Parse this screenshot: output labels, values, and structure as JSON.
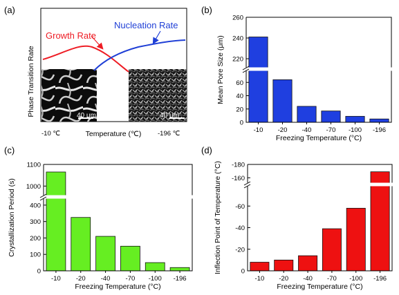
{
  "panels": {
    "a": {
      "label": "(a)",
      "ylabel": "Phase Transition Rate",
      "xlabel": "Temperature (℃)",
      "xleft": "-10 ℃",
      "xright": "-196 ℃",
      "growth_label": "Growth Rate",
      "nucleation_label": "Nucleation Rate",
      "scale_left": "40 μm",
      "scale_right": "40 μm",
      "colors": {
        "growth": "#ee1c24",
        "nucleation": "#1f3fd6"
      }
    },
    "b": {
      "label": "(b)"
    },
    "c": {
      "label": "(c)"
    },
    "d": {
      "label": "(d)"
    }
  },
  "chart_data": [
    {
      "panel": "b",
      "type": "bar",
      "categories": [
        "-10",
        "-20",
        "-40",
        "-70",
        "-100",
        "-196"
      ],
      "values": [
        241,
        64,
        24,
        17,
        9,
        5
      ],
      "xlabel": "Freezing Temperature (°C)",
      "ylabel": "Mean Pore Size (μm)",
      "axis_break": true,
      "ylim_lower": [
        0,
        80
      ],
      "ylim_upper": [
        210,
        260
      ],
      "yticks_lower": [
        0,
        20,
        40,
        60
      ],
      "yticks_upper": [
        220,
        240,
        260
      ],
      "color": "#1f3fe0",
      "grid": false
    },
    {
      "panel": "c",
      "type": "bar",
      "categories": [
        "-10",
        "-20",
        "-40",
        "-70",
        "-100",
        "-196"
      ],
      "values": [
        1065,
        325,
        210,
        150,
        50,
        20
      ],
      "xlabel": "Freezing Temperature (°C)",
      "ylabel": "Crystallization Period (s)",
      "axis_break": true,
      "ylim_lower": [
        0,
        450
      ],
      "ylim_upper": [
        950,
        1100
      ],
      "yticks_lower": [
        0,
        100,
        200,
        300,
        400
      ],
      "yticks_upper": [
        1000,
        1100
      ],
      "color": "#66ee22",
      "grid": false
    },
    {
      "panel": "d",
      "type": "bar",
      "categories": [
        "-10",
        "-20",
        "-40",
        "-70",
        "-100",
        "-196"
      ],
      "values": [
        -8,
        -10,
        -14,
        -39,
        -58,
        -169
      ],
      "xlabel": "Freezing Temperature (°C)",
      "ylabel": "Inflection Point of Temperature (°C)",
      "axis_break": true,
      "ylim_lower": [
        0,
        -80
      ],
      "ylim_upper": [
        -150,
        -180
      ],
      "yticks_lower": [
        0,
        -20,
        -40,
        -60
      ],
      "yticks_upper": [
        -160,
        -180
      ],
      "color": "#ee1111",
      "grid": false
    }
  ]
}
